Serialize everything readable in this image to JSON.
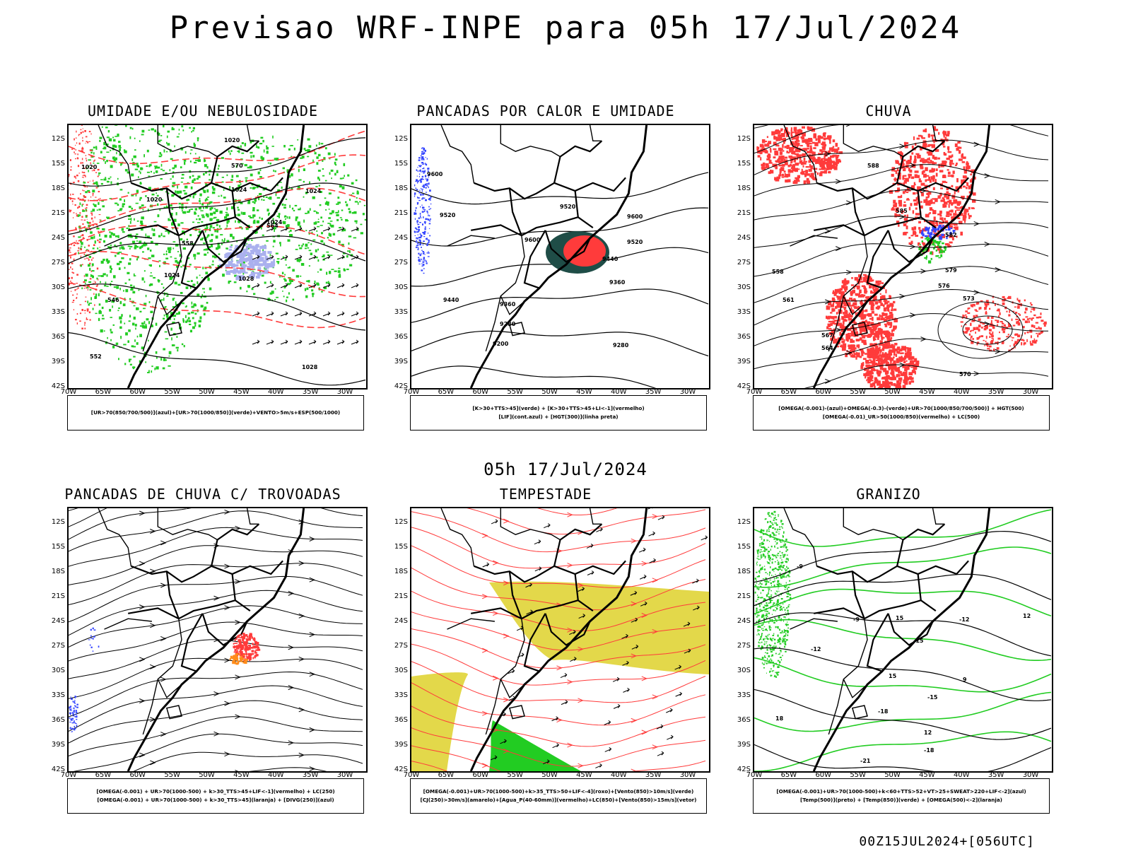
{
  "main_title": "Previsao WRF-INPE  para 05h 17/Jul/2024",
  "mid_date": "05h 17/Jul/2024",
  "footer": "00Z15JUL2024+[056UTC]",
  "latitude_labels": [
    "12S",
    "15S",
    "18S",
    "21S",
    "24S",
    "27S",
    "30S",
    "33S",
    "36S",
    "39S",
    "42S"
  ],
  "longitude_labels": [
    "70W",
    "65W",
    "60W",
    "55W",
    "50W",
    "45W",
    "40W",
    "35W",
    "30W"
  ],
  "colors": {
    "green": "#22cc22",
    "red": "#ff3b3b",
    "blue": "#3344ff",
    "yellow": "#e3d84a",
    "dark_teal": "#1f4d47",
    "lavender": "#aab0ee",
    "orange": "#ff8c1a"
  },
  "panels": [
    {
      "id": "umidade",
      "title": "UMIDADE E/OU NEBULOSIDADE",
      "legend": [
        "[UR>70(850/700/500)](azul)+[UR>70(1000/850)](verde)+VENTO>5m/s+ESP(500/1000)"
      ],
      "labels": [
        "1020",
        "1020",
        "1024",
        "1024",
        "1024",
        "1028",
        "1024",
        "1020",
        "570",
        "564",
        "558",
        "552",
        "546",
        "1028"
      ]
    },
    {
      "id": "pancadas-calor",
      "title": "PANCADAS POR CALOR E UMIDADE",
      "legend": [
        "[K>30+TTS>45](verde) + [K>30+TTS>45+LI<-1](vermelho)",
        "[LIF](cont.azul) + [HGT(300)](linha preta)"
      ],
      "labels": [
        "9600",
        "9520",
        "9600",
        "9520",
        "9600",
        "9520",
        "9440",
        "9440",
        "9360",
        "9360",
        "9280",
        "9280",
        "9200"
      ]
    },
    {
      "id": "chuva",
      "title": "CHUVA",
      "legend": [
        "[OMEGA(-0.001)-(azul)+OMEGA(-0.3)-(verde)+UR>70(1000/850/700/500)] + HGT(500)",
        "[OMEGA(-0.01)_UR>50(1000/850)(vermelho) + LC(500)"
      ],
      "labels": [
        "588",
        "585",
        "582",
        "579",
        "576",
        "573",
        "570",
        "567",
        "564",
        "561",
        "558"
      ]
    },
    {
      "id": "pancadas-trovoadas",
      "title": "PANCADAS DE CHUVA C/ TROVOADAS",
      "legend": [
        "[OMEGA(-0.001) + UR>70(1000-500) + k>30_TTS>45+LIF<-1](vermelho) + LC(250)",
        "[OMEGA(-0.001) + UR>70(1000-500) + k>30_TTS>45](laranja) + [DIVG(250)](azul)"
      ],
      "labels": []
    },
    {
      "id": "tempestade",
      "title": "TEMPESTADE",
      "legend": [
        "[OMEGA(-0.001)+UR>70(1000-500)+k>35_TTS>50+LIF<-4](roxo)+[Vento(850)>10m/s](verde)",
        "[CJ(250)>30m/s](amarelo)+[Agua_P(40-60mm)](vermelho)+LC(850)+[Vento(850)>15m/s](vetor)"
      ],
      "labels": []
    },
    {
      "id": "granizo",
      "title": "GRANIZO",
      "legend": [
        "[OMEGA(-0.001)+UR>70(1000-500)+k<60+TTS>52+VT>25+SWEAT>220+LIF<-2](azul)",
        "[Temp(500)](preto) + [Temp(850)](verde) + [OMEGA(500)<-2](laranja)"
      ],
      "labels": [
        "-9",
        "-9",
        "-12",
        "-12",
        "-15",
        "-15",
        "-18",
        "-18",
        "-21",
        "18",
        "15",
        "12",
        "9",
        "15",
        "12"
      ]
    }
  ]
}
